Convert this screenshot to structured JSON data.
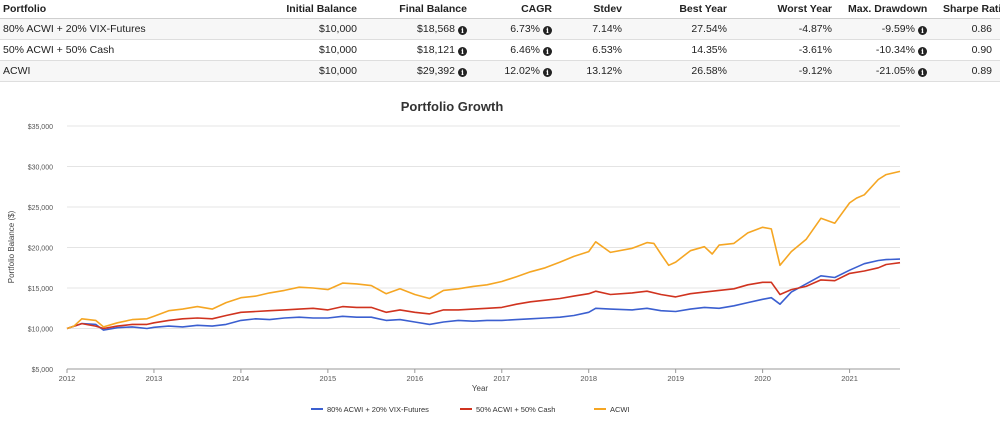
{
  "table": {
    "headers": [
      "Portfolio",
      "Initial Balance",
      "Final Balance",
      "CAGR",
      "Stdev",
      "Best Year",
      "Worst Year",
      "Max. Drawdown",
      "Sharpe Ratio"
    ],
    "rows": [
      {
        "portfolio": "80% ACWI + 20% VIX-Futures",
        "initial": "$10,000",
        "final": "$18,568",
        "cagr": "6.73%",
        "stdev": "7.14%",
        "best": "27.54%",
        "worst": "-4.87%",
        "drawdown": "-9.59%",
        "sharpe": "0.86"
      },
      {
        "portfolio": "50% ACWI + 50% Cash",
        "initial": "$10,000",
        "final": "$18,121",
        "cagr": "6.46%",
        "stdev": "6.53%",
        "best": "14.35%",
        "worst": "-3.61%",
        "drawdown": "-10.34%",
        "sharpe": "0.90"
      },
      {
        "portfolio": "ACWI",
        "initial": "$10,000",
        "final": "$29,392",
        "cagr": "12.02%",
        "stdev": "13.12%",
        "best": "26.58%",
        "worst": "-9.12%",
        "drawdown": "-21.05%",
        "sharpe": "0.89"
      }
    ],
    "info_icon": "info-circle-icon"
  },
  "chart_data": {
    "type": "line",
    "title": "Portfolio Growth",
    "xlabel": "Year",
    "ylabel": "Portfolio Balance ($)",
    "xlim": [
      2012,
      2021.58
    ],
    "ylim": [
      5000,
      35000
    ],
    "x_ticks": [
      "2012",
      "2013",
      "2014",
      "2015",
      "2016",
      "2017",
      "2018",
      "2019",
      "2020",
      "2021"
    ],
    "y_ticks": [
      "$5,000",
      "$10,000",
      "$15,000",
      "$20,000",
      "$25,000",
      "$30,000",
      "$35,000"
    ],
    "grid": true,
    "legend_position": "bottom",
    "series": [
      {
        "name": "80% ACWI + 20% VIX-Futures",
        "color": "#3b5fd0",
        "points": [
          [
            2012.0,
            10000
          ],
          [
            2012.17,
            10600
          ],
          [
            2012.33,
            10500
          ],
          [
            2012.42,
            9800
          ],
          [
            2012.58,
            10100
          ],
          [
            2012.75,
            10200
          ],
          [
            2012.92,
            10000
          ],
          [
            2013.0,
            10150
          ],
          [
            2013.17,
            10300
          ],
          [
            2013.33,
            10200
          ],
          [
            2013.5,
            10400
          ],
          [
            2013.67,
            10300
          ],
          [
            2013.83,
            10500
          ],
          [
            2014.0,
            11000
          ],
          [
            2014.17,
            11200
          ],
          [
            2014.33,
            11100
          ],
          [
            2014.5,
            11300
          ],
          [
            2014.67,
            11400
          ],
          [
            2014.83,
            11300
          ],
          [
            2015.0,
            11300
          ],
          [
            2015.17,
            11500
          ],
          [
            2015.33,
            11400
          ],
          [
            2015.5,
            11400
          ],
          [
            2015.67,
            11000
          ],
          [
            2015.83,
            11100
          ],
          [
            2016.0,
            10800
          ],
          [
            2016.17,
            10500
          ],
          [
            2016.33,
            10800
          ],
          [
            2016.5,
            11000
          ],
          [
            2016.67,
            10900
          ],
          [
            2016.83,
            11000
          ],
          [
            2017.0,
            11000
          ],
          [
            2017.17,
            11100
          ],
          [
            2017.33,
            11200
          ],
          [
            2017.5,
            11300
          ],
          [
            2017.67,
            11400
          ],
          [
            2017.83,
            11600
          ],
          [
            2018.0,
            12000
          ],
          [
            2018.08,
            12500
          ],
          [
            2018.25,
            12400
          ],
          [
            2018.5,
            12300
          ],
          [
            2018.67,
            12500
          ],
          [
            2018.83,
            12200
          ],
          [
            2019.0,
            12100
          ],
          [
            2019.17,
            12400
          ],
          [
            2019.33,
            12600
          ],
          [
            2019.5,
            12500
          ],
          [
            2019.67,
            12800
          ],
          [
            2019.83,
            13200
          ],
          [
            2020.0,
            13600
          ],
          [
            2020.1,
            13800
          ],
          [
            2020.2,
            13000
          ],
          [
            2020.33,
            14500
          ],
          [
            2020.5,
            15500
          ],
          [
            2020.67,
            16500
          ],
          [
            2020.83,
            16300
          ],
          [
            2021.0,
            17200
          ],
          [
            2021.17,
            18000
          ],
          [
            2021.33,
            18400
          ],
          [
            2021.42,
            18500
          ],
          [
            2021.58,
            18568
          ]
        ]
      },
      {
        "name": "50% ACWI + 50% Cash",
        "color": "#d0331f",
        "points": [
          [
            2012.0,
            10000
          ],
          [
            2012.17,
            10600
          ],
          [
            2012.33,
            10300
          ],
          [
            2012.42,
            10000
          ],
          [
            2012.58,
            10300
          ],
          [
            2012.75,
            10500
          ],
          [
            2012.92,
            10500
          ],
          [
            2013.0,
            10700
          ],
          [
            2013.17,
            11000
          ],
          [
            2013.33,
            11200
          ],
          [
            2013.5,
            11300
          ],
          [
            2013.67,
            11200
          ],
          [
            2013.83,
            11600
          ],
          [
            2014.0,
            12000
          ],
          [
            2014.17,
            12100
          ],
          [
            2014.33,
            12200
          ],
          [
            2014.5,
            12300
          ],
          [
            2014.67,
            12400
          ],
          [
            2014.83,
            12500
          ],
          [
            2015.0,
            12300
          ],
          [
            2015.17,
            12700
          ],
          [
            2015.33,
            12600
          ],
          [
            2015.5,
            12600
          ],
          [
            2015.67,
            12000
          ],
          [
            2015.83,
            12300
          ],
          [
            2016.0,
            12000
          ],
          [
            2016.17,
            11800
          ],
          [
            2016.33,
            12300
          ],
          [
            2016.5,
            12300
          ],
          [
            2016.67,
            12400
          ],
          [
            2016.83,
            12500
          ],
          [
            2017.0,
            12600
          ],
          [
            2017.17,
            13000
          ],
          [
            2017.33,
            13300
          ],
          [
            2017.5,
            13500
          ],
          [
            2017.67,
            13700
          ],
          [
            2017.83,
            14000
          ],
          [
            2018.0,
            14300
          ],
          [
            2018.08,
            14600
          ],
          [
            2018.25,
            14200
          ],
          [
            2018.5,
            14400
          ],
          [
            2018.67,
            14600
          ],
          [
            2018.83,
            14200
          ],
          [
            2019.0,
            13900
          ],
          [
            2019.17,
            14300
          ],
          [
            2019.33,
            14500
          ],
          [
            2019.5,
            14700
          ],
          [
            2019.67,
            14900
          ],
          [
            2019.83,
            15400
          ],
          [
            2020.0,
            15700
          ],
          [
            2020.1,
            15700
          ],
          [
            2020.2,
            14200
          ],
          [
            2020.33,
            14800
          ],
          [
            2020.5,
            15200
          ],
          [
            2020.67,
            16000
          ],
          [
            2020.83,
            15900
          ],
          [
            2021.0,
            16800
          ],
          [
            2021.17,
            17100
          ],
          [
            2021.33,
            17500
          ],
          [
            2021.42,
            17900
          ],
          [
            2021.58,
            18121
          ]
        ]
      },
      {
        "name": "ACWI",
        "color": "#f5a623",
        "points": [
          [
            2012.0,
            10000
          ],
          [
            2012.08,
            10300
          ],
          [
            2012.17,
            11200
          ],
          [
            2012.33,
            11000
          ],
          [
            2012.42,
            10200
          ],
          [
            2012.58,
            10700
          ],
          [
            2012.75,
            11100
          ],
          [
            2012.92,
            11200
          ],
          [
            2013.0,
            11500
          ],
          [
            2013.17,
            12200
          ],
          [
            2013.33,
            12400
          ],
          [
            2013.5,
            12700
          ],
          [
            2013.67,
            12400
          ],
          [
            2013.83,
            13200
          ],
          [
            2014.0,
            13800
          ],
          [
            2014.17,
            14000
          ],
          [
            2014.33,
            14400
          ],
          [
            2014.5,
            14700
          ],
          [
            2014.67,
            15100
          ],
          [
            2014.83,
            15000
          ],
          [
            2015.0,
            14800
          ],
          [
            2015.17,
            15600
          ],
          [
            2015.33,
            15500
          ],
          [
            2015.5,
            15300
          ],
          [
            2015.67,
            14300
          ],
          [
            2015.83,
            14900
          ],
          [
            2016.0,
            14200
          ],
          [
            2016.17,
            13700
          ],
          [
            2016.33,
            14700
          ],
          [
            2016.5,
            14900
          ],
          [
            2016.67,
            15200
          ],
          [
            2016.83,
            15400
          ],
          [
            2017.0,
            15800
          ],
          [
            2017.17,
            16400
          ],
          [
            2017.33,
            17000
          ],
          [
            2017.5,
            17500
          ],
          [
            2017.67,
            18200
          ],
          [
            2017.83,
            18900
          ],
          [
            2018.0,
            19500
          ],
          [
            2018.08,
            20700
          ],
          [
            2018.25,
            19400
          ],
          [
            2018.5,
            19900
          ],
          [
            2018.67,
            20600
          ],
          [
            2018.75,
            20500
          ],
          [
            2018.83,
            19200
          ],
          [
            2018.92,
            17800
          ],
          [
            2019.0,
            18200
          ],
          [
            2019.17,
            19600
          ],
          [
            2019.33,
            20100
          ],
          [
            2019.42,
            19200
          ],
          [
            2019.5,
            20300
          ],
          [
            2019.67,
            20500
          ],
          [
            2019.83,
            21800
          ],
          [
            2020.0,
            22500
          ],
          [
            2020.1,
            22300
          ],
          [
            2020.2,
            17800
          ],
          [
            2020.33,
            19500
          ],
          [
            2020.5,
            21000
          ],
          [
            2020.67,
            23600
          ],
          [
            2020.83,
            23000
          ],
          [
            2021.0,
            25500
          ],
          [
            2021.08,
            26100
          ],
          [
            2021.17,
            26500
          ],
          [
            2021.33,
            28400
          ],
          [
            2021.42,
            29000
          ],
          [
            2021.58,
            29392
          ]
        ]
      }
    ]
  }
}
